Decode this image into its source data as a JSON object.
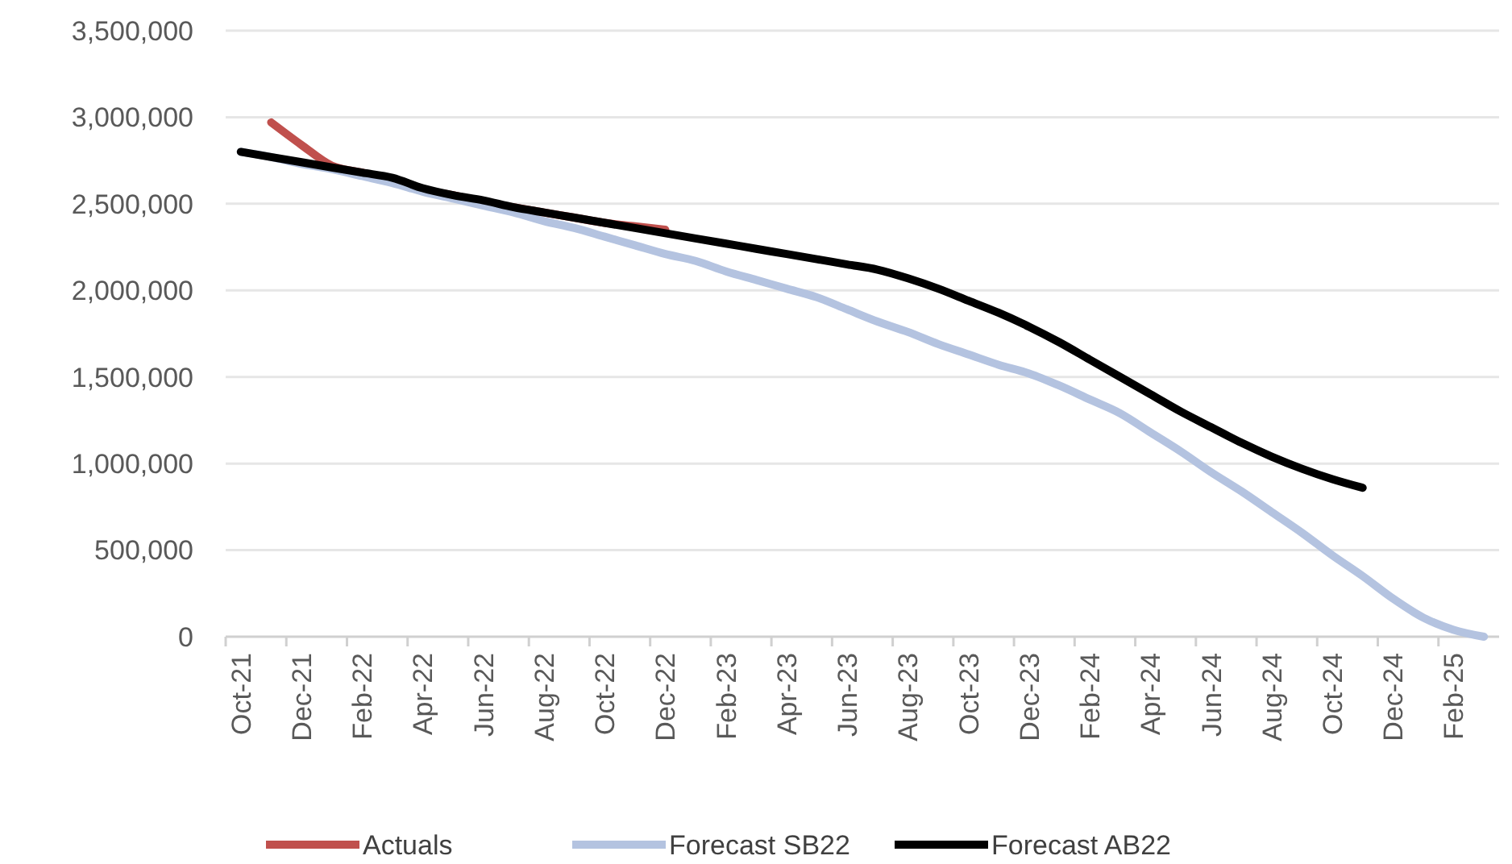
{
  "chart_data": {
    "type": "line",
    "categories": [
      "Oct-21",
      null,
      "Dec-21",
      null,
      "Feb-22",
      null,
      "Apr-22",
      null,
      "Jun-22",
      null,
      "Aug-22",
      null,
      "Oct-22",
      null,
      "Dec-22",
      null,
      "Feb-23",
      null,
      "Apr-23",
      null,
      "Jun-23",
      null,
      "Aug-23",
      null,
      "Oct-23",
      null,
      "Dec-23",
      null,
      "Feb-24",
      null,
      "Apr-24",
      null,
      "Jun-24",
      null,
      "Aug-24",
      null,
      "Oct-24",
      null,
      "Dec-24",
      null,
      "Feb-25",
      null
    ],
    "series": [
      {
        "name": "Actuals",
        "color": "#c0504d",
        "values": [
          null,
          2970000,
          2840000,
          2720000,
          2680000,
          2630000,
          2580000,
          2550000,
          2510000,
          2480000,
          2450000,
          2420000,
          2390000,
          2370000,
          2350000,
          null,
          null,
          null,
          null,
          null,
          null,
          null,
          null,
          null,
          null,
          null,
          null,
          null,
          null,
          null,
          null,
          null,
          null,
          null,
          null,
          null,
          null,
          null,
          null,
          null,
          null,
          null
        ]
      },
      {
        "name": "Forecast SB22",
        "color": "#b4c3e0",
        "values": [
          2800000,
          2770000,
          2730000,
          2700000,
          2660000,
          2620000,
          2570000,
          2530000,
          2490000,
          2450000,
          2400000,
          2360000,
          2310000,
          2260000,
          2210000,
          2170000,
          2110000,
          2060000,
          2010000,
          1960000,
          1890000,
          1820000,
          1760000,
          1690000,
          1630000,
          1570000,
          1520000,
          1450000,
          1370000,
          1290000,
          1180000,
          1070000,
          950000,
          840000,
          720000,
          600000,
          470000,
          350000,
          220000,
          110000,
          40000,
          0
        ]
      },
      {
        "name": "Forecast AB22",
        "color": "#000000",
        "values": [
          2800000,
          2770000,
          2740000,
          2710000,
          2680000,
          2650000,
          2590000,
          2550000,
          2520000,
          2480000,
          2450000,
          2420000,
          2390000,
          2360000,
          2330000,
          2300000,
          2270000,
          2240000,
          2210000,
          2180000,
          2150000,
          2120000,
          2070000,
          2010000,
          1940000,
          1870000,
          1790000,
          1700000,
          1600000,
          1500000,
          1400000,
          1300000,
          1210000,
          1120000,
          1040000,
          970000,
          910000,
          860000,
          null,
          null,
          null,
          null
        ]
      }
    ],
    "ylim": [
      0,
      3500000
    ],
    "yticks": [
      {
        "value": 0,
        "label": "0"
      },
      {
        "value": 500000,
        "label": "500,000"
      },
      {
        "value": 1000000,
        "label": "1,000,000"
      },
      {
        "value": 1500000,
        "label": "1,500,000"
      },
      {
        "value": 2000000,
        "label": "2,000,000"
      },
      {
        "value": 2500000,
        "label": "2,500,000"
      },
      {
        "value": 3000000,
        "label": "3,000,000"
      },
      {
        "value": 3500000,
        "label": "3,500,000"
      }
    ],
    "grid": "y",
    "legend": "bottom",
    "marker": "none",
    "line_style": "solid"
  }
}
